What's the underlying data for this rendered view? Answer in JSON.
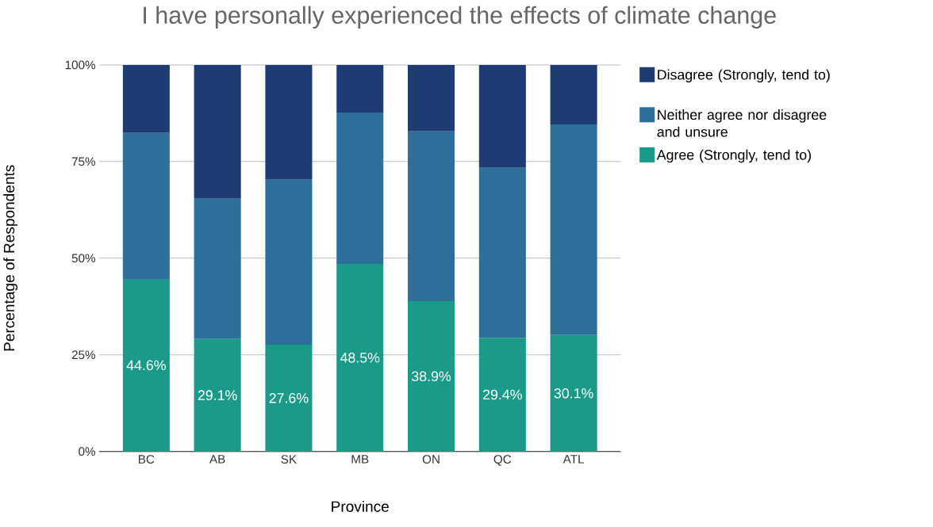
{
  "chart_data": {
    "type": "bar",
    "stacked": true,
    "title": "I have personally experienced the effects of climate change",
    "xlabel": "Province",
    "ylabel": "Percentage of Respondents",
    "categories": [
      "BC",
      "AB",
      "SK",
      "MB",
      "ON",
      "QC",
      "ATL"
    ],
    "series": [
      {
        "name": "Agree (Strongly, tend to)",
        "color": "#1b9a8a",
        "values": [
          44.6,
          29.1,
          27.6,
          48.5,
          38.9,
          29.4,
          30.1
        ],
        "value_labels": [
          "44.6%",
          "29.1%",
          "27.6%",
          "48.5%",
          "38.9%",
          "29.4%",
          "30.1%"
        ]
      },
      {
        "name": "Neither agree nor disagree and unsure",
        "color": "#2d6f9a",
        "values": [
          37.8,
          36.3,
          42.7,
          39.2,
          43.9,
          44.0,
          54.5
        ]
      },
      {
        "name": "Disagree (Strongly, tend to)",
        "color": "#1f3b73",
        "values": [
          17.6,
          34.6,
          29.7,
          12.3,
          17.2,
          26.6,
          15.4
        ]
      }
    ],
    "ylim": [
      0,
      100
    ],
    "yticks": [
      {
        "value": 0,
        "label": "0%"
      },
      {
        "value": 25,
        "label": "25%"
      },
      {
        "value": 50,
        "label": "50%"
      },
      {
        "value": 75,
        "label": "75%"
      },
      {
        "value": 100,
        "label": "100%"
      }
    ],
    "grid": "y",
    "legend": "right"
  }
}
